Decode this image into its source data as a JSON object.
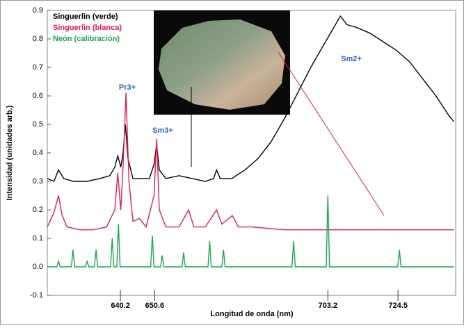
{
  "chart_data": {
    "type": "line",
    "x_label": "Longitud de onda (nm)",
    "y_label": "Intensidad (unidades arb.)",
    "xlim": [
      618,
      742
    ],
    "xticks": [
      640.2,
      650.6,
      703.2,
      724.5
    ],
    "ylim": [
      -0.1,
      0.9
    ],
    "yticks": [
      -0.1,
      {
        "value": 0,
        "label": "0.0"
      },
      0.1,
      0.2,
      0.3,
      0.4,
      0.5,
      0.6,
      0.7,
      0.8,
      0.9
    ],
    "grid": false,
    "annotations": [
      "Pr3+",
      "Sm3+",
      "Sm2+"
    ],
    "series": [
      {
        "name": "Singuerlin (verde)",
        "color": "#000000",
        "x": [
          618,
          620,
          621.4,
          623,
          626,
          630,
          634,
          637,
          638.5,
          639.4,
          640.3,
          641,
          641.7,
          642.5,
          644,
          647,
          649,
          650.4,
          651.2,
          652,
          654,
          658,
          662,
          666,
          668.5,
          669.4,
          670.5,
          674,
          678,
          682,
          686,
          690,
          694,
          698,
          702,
          705,
          707,
          709,
          712,
          716,
          720,
          724,
          728,
          732,
          736,
          740,
          741.5
        ],
        "values": [
          0.31,
          0.3,
          0.34,
          0.31,
          0.3,
          0.3,
          0.31,
          0.32,
          0.35,
          0.39,
          0.35,
          0.4,
          0.5,
          0.38,
          0.31,
          0.31,
          0.31,
          0.36,
          0.43,
          0.34,
          0.31,
          0.32,
          0.31,
          0.3,
          0.31,
          0.34,
          0.31,
          0.31,
          0.34,
          0.38,
          0.44,
          0.52,
          0.61,
          0.7,
          0.78,
          0.84,
          0.88,
          0.85,
          0.84,
          0.82,
          0.79,
          0.76,
          0.72,
          0.66,
          0.6,
          0.53,
          0.51
        ]
      },
      {
        "name": "Singuerlin (blanca)",
        "color": "#e0204a",
        "x": [
          618,
          620,
          621.4,
          622.5,
          624,
          628,
          632,
          636,
          638.5,
          639.4,
          640.3,
          641,
          641.9,
          642.8,
          644,
          646,
          648,
          650.4,
          651.2,
          652,
          654,
          658,
          660.9,
          662.5,
          666,
          669.4,
          671,
          674.2,
          676,
          680,
          690,
          700,
          710,
          720,
          730,
          741.5
        ],
        "values": [
          0.14,
          0.19,
          0.25,
          0.18,
          0.14,
          0.13,
          0.13,
          0.14,
          0.2,
          0.33,
          0.2,
          0.35,
          0.61,
          0.3,
          0.16,
          0.17,
          0.14,
          0.25,
          0.45,
          0.2,
          0.14,
          0.14,
          0.2,
          0.14,
          0.14,
          0.2,
          0.15,
          0.18,
          0.14,
          0.14,
          0.13,
          0.13,
          0.13,
          0.13,
          0.13,
          0.13
        ]
      },
      {
        "name": "Neón (calibración)",
        "color": "#1aa84a",
        "x": [
          618,
          620.9,
          621.4,
          621.9,
          625.3,
          625.8,
          626.3,
          629.6,
          630.1,
          630.6,
          632.3,
          632.8,
          633.3,
          637.2,
          637.7,
          638.2,
          639.1,
          639.6,
          640.1,
          649.4,
          649.9,
          650.4,
          652.4,
          652.9,
          653.4,
          658.9,
          659.4,
          659.9,
          666.8,
          667.3,
          667.8,
          671,
          671.5,
          672,
          692.3,
          692.8,
          693.3,
          702.7,
          703.2,
          703.7,
          724.4,
          724.9,
          725.4,
          741.5
        ],
        "values": [
          0,
          0,
          0.02,
          0,
          0,
          0.06,
          0,
          0,
          0.02,
          0,
          0,
          0.06,
          0,
          0,
          0.1,
          0,
          0,
          0.15,
          0,
          0,
          0.11,
          0,
          0,
          0.04,
          0,
          0,
          0.05,
          0,
          0,
          0.09,
          0,
          0,
          0.06,
          0,
          0,
          0.09,
          0,
          0,
          0.25,
          0,
          0,
          0.06,
          0,
          0
        ]
      }
    ]
  }
}
